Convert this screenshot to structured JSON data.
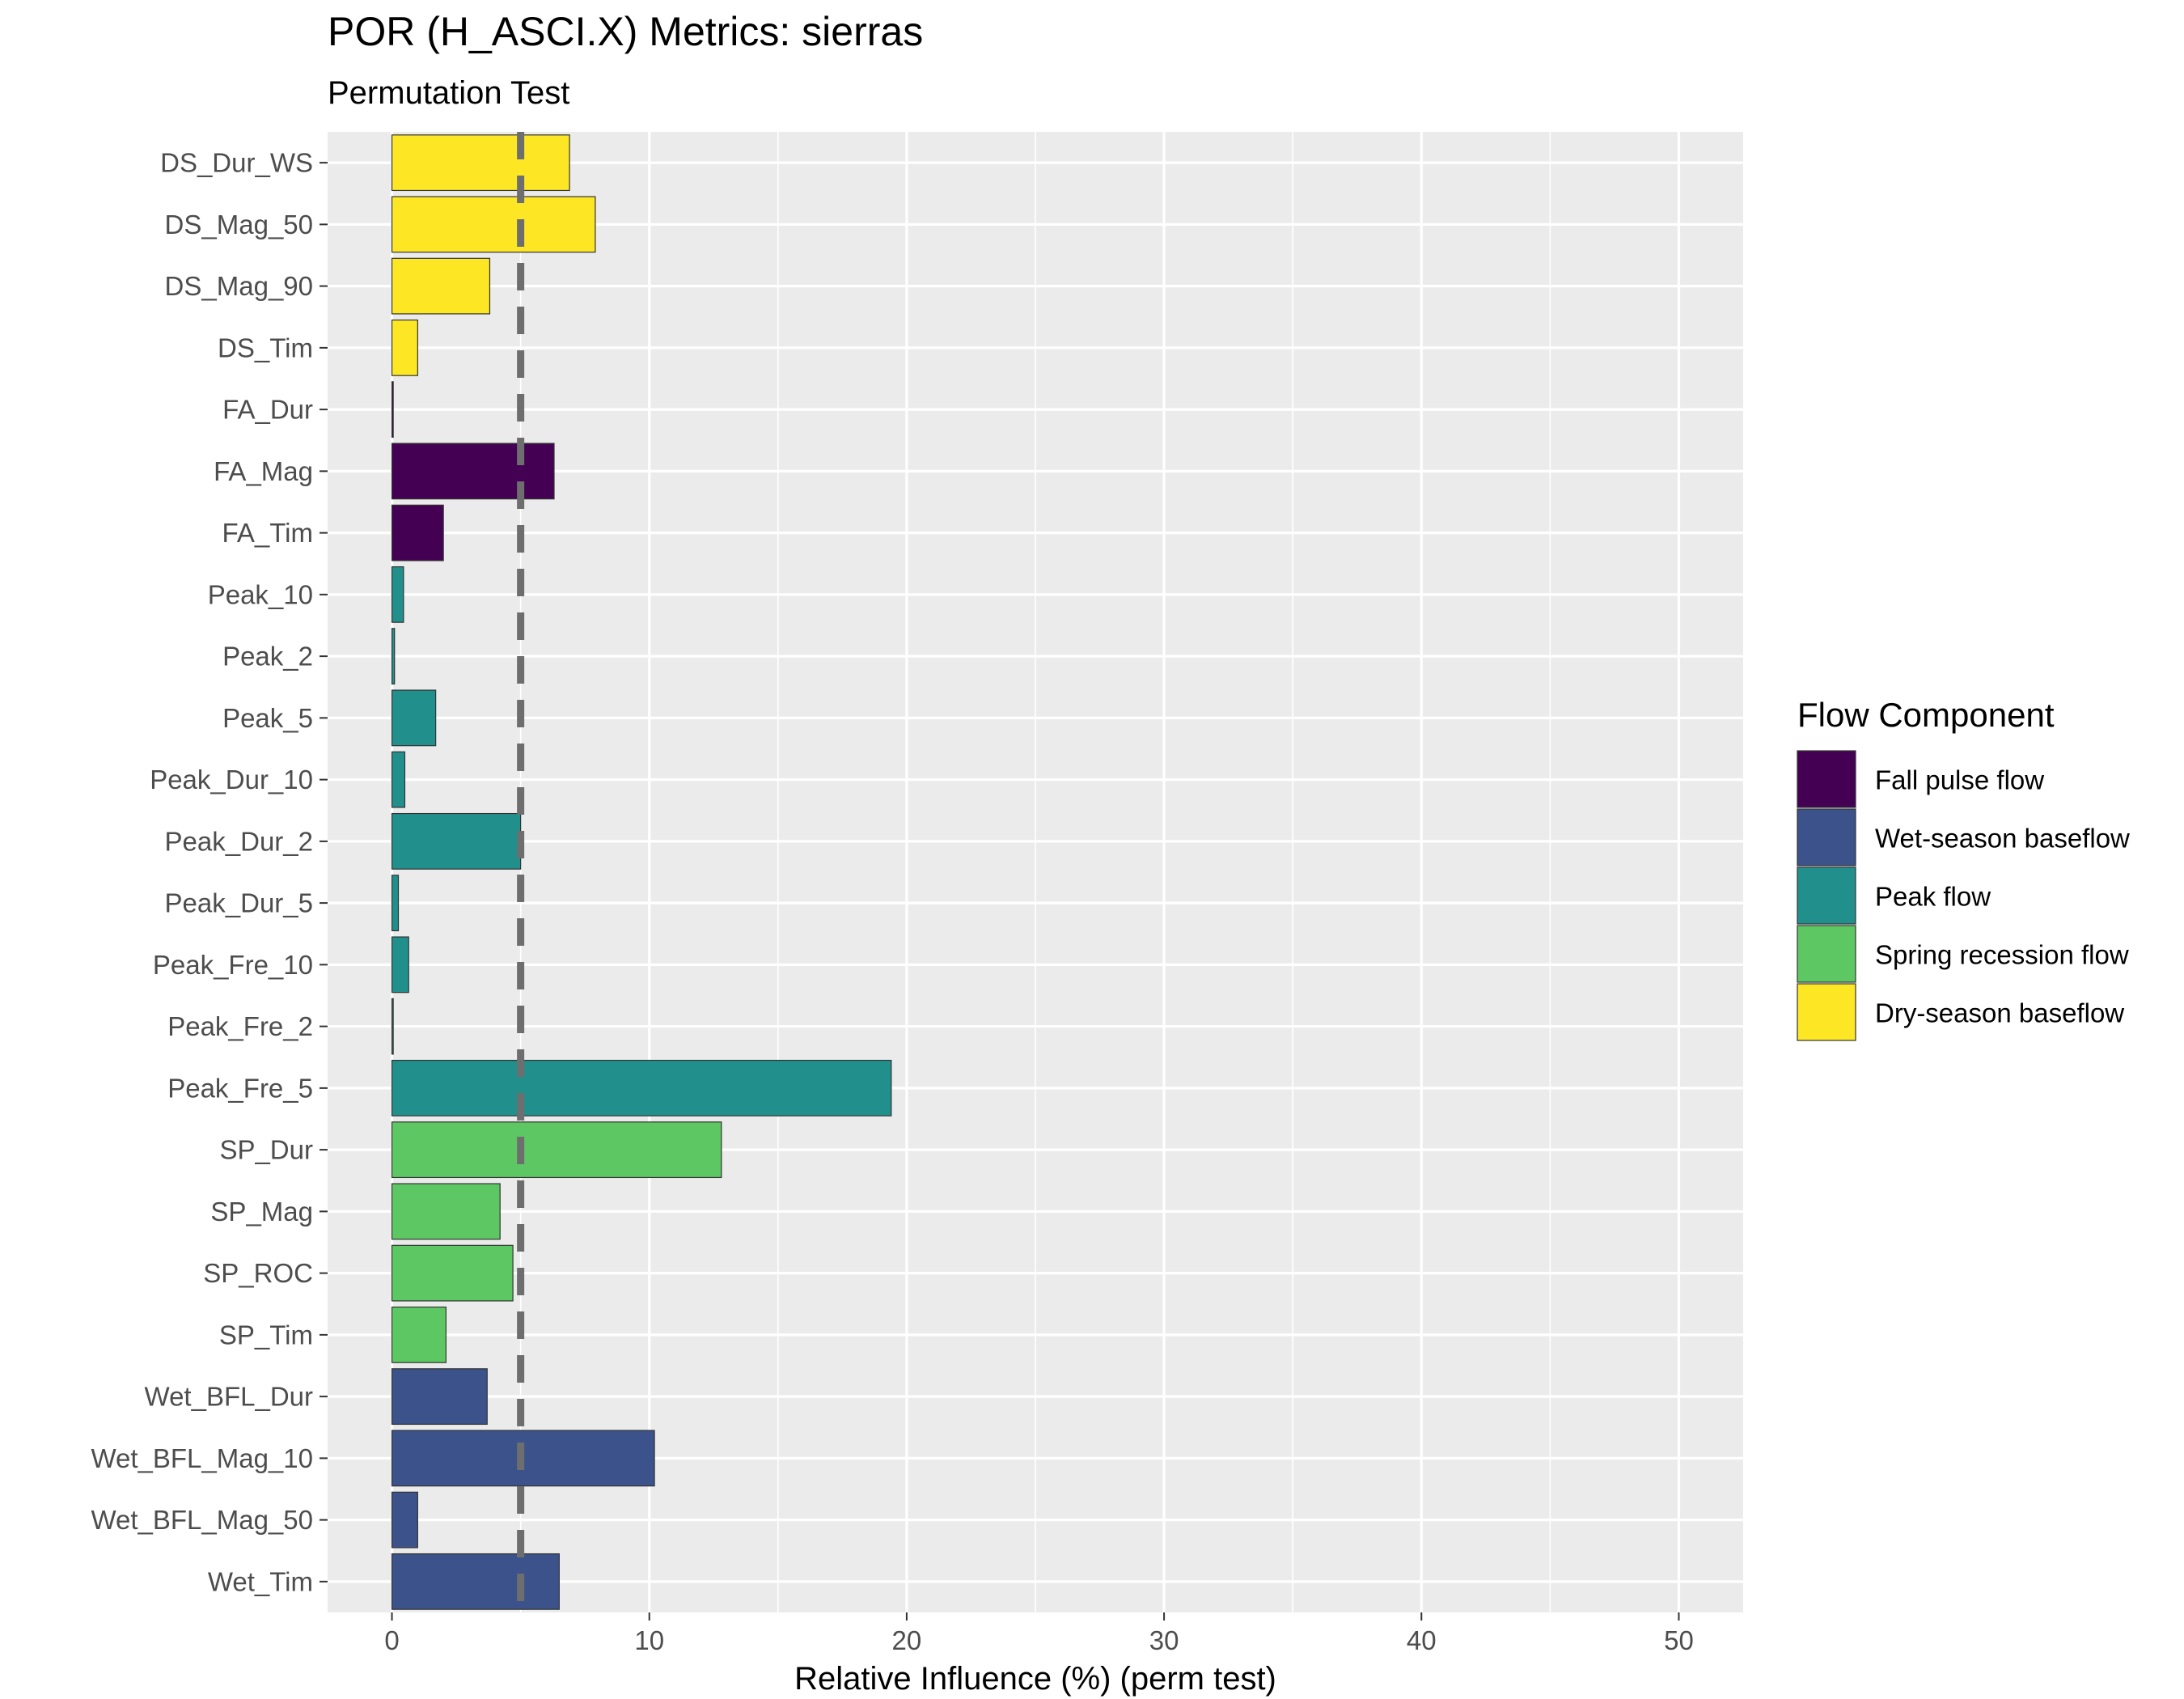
{
  "chart_data": {
    "type": "bar",
    "orientation": "horizontal",
    "title": "POR (H_ASCI.X) Metrics: sierras",
    "subtitle": "Permutation Test",
    "xlabel": "Relative Influence (%) (perm test)",
    "ylabel": "",
    "xlim": [
      -2.5,
      52.5
    ],
    "xticks": [
      0,
      10,
      20,
      30,
      40,
      50
    ],
    "reference_line": {
      "x": 5,
      "style": "dashed",
      "color": "#6e6e6e"
    },
    "grid": true,
    "legend": {
      "title": "Flow Component",
      "position": "right",
      "entries": [
        {
          "label": "Fall pulse flow",
          "color": "#440154"
        },
        {
          "label": "Wet-season baseflow",
          "color": "#3B528B"
        },
        {
          "label": "Peak flow",
          "color": "#21908C"
        },
        {
          "label": "Spring recession flow",
          "color": "#5DC863"
        },
        {
          "label": "Dry-season baseflow",
          "color": "#FDE725"
        }
      ]
    },
    "categories": [
      "DS_Dur_WS",
      "DS_Mag_50",
      "DS_Mag_90",
      "DS_Tim",
      "FA_Dur",
      "FA_Mag",
      "FA_Tim",
      "Peak_10",
      "Peak_2",
      "Peak_5",
      "Peak_Dur_10",
      "Peak_Dur_2",
      "Peak_Dur_5",
      "Peak_Fre_10",
      "Peak_Fre_2",
      "Peak_Fre_5",
      "SP_Dur",
      "SP_Mag",
      "SP_ROC",
      "SP_Tim",
      "Wet_BFL_Dur",
      "Wet_BFL_Mag_10",
      "Wet_BFL_Mag_50",
      "Wet_Tim"
    ],
    "values": [
      6.9,
      7.9,
      3.8,
      1.0,
      0.05,
      6.3,
      2.0,
      0.45,
      0.1,
      1.7,
      0.5,
      5.0,
      0.25,
      0.65,
      0.05,
      19.4,
      12.8,
      4.2,
      4.7,
      2.1,
      3.7,
      10.2,
      1.0,
      6.5
    ],
    "groups": [
      "Dry-season baseflow",
      "Dry-season baseflow",
      "Dry-season baseflow",
      "Dry-season baseflow",
      "Fall pulse flow",
      "Fall pulse flow",
      "Fall pulse flow",
      "Peak flow",
      "Peak flow",
      "Peak flow",
      "Peak flow",
      "Peak flow",
      "Peak flow",
      "Peak flow",
      "Peak flow",
      "Peak flow",
      "Spring recession flow",
      "Spring recession flow",
      "Spring recession flow",
      "Spring recession flow",
      "Wet-season baseflow",
      "Wet-season baseflow",
      "Wet-season baseflow",
      "Wet-season baseflow"
    ]
  }
}
